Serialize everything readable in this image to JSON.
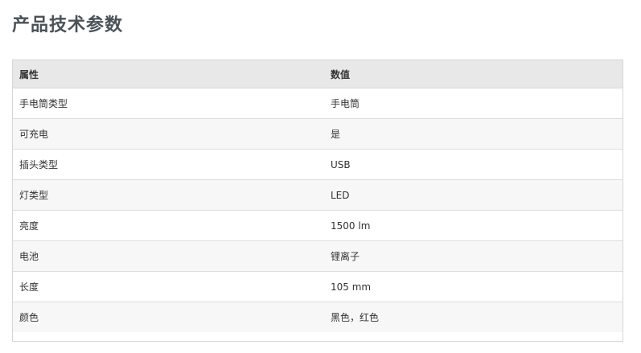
{
  "title": "产品技术参数",
  "table": {
    "headers": [
      "属性",
      "数值"
    ],
    "rows": [
      [
        "手电筒类型",
        "手电筒"
      ],
      [
        "可充电",
        "是"
      ],
      [
        "插头类型",
        "USB"
      ],
      [
        "灯类型",
        "LED"
      ],
      [
        "亮度",
        "1500 lm"
      ],
      [
        "电池",
        "锂离子"
      ],
      [
        "长度",
        "105 mm"
      ],
      [
        "颜色",
        "黑色，红色"
      ]
    ]
  }
}
